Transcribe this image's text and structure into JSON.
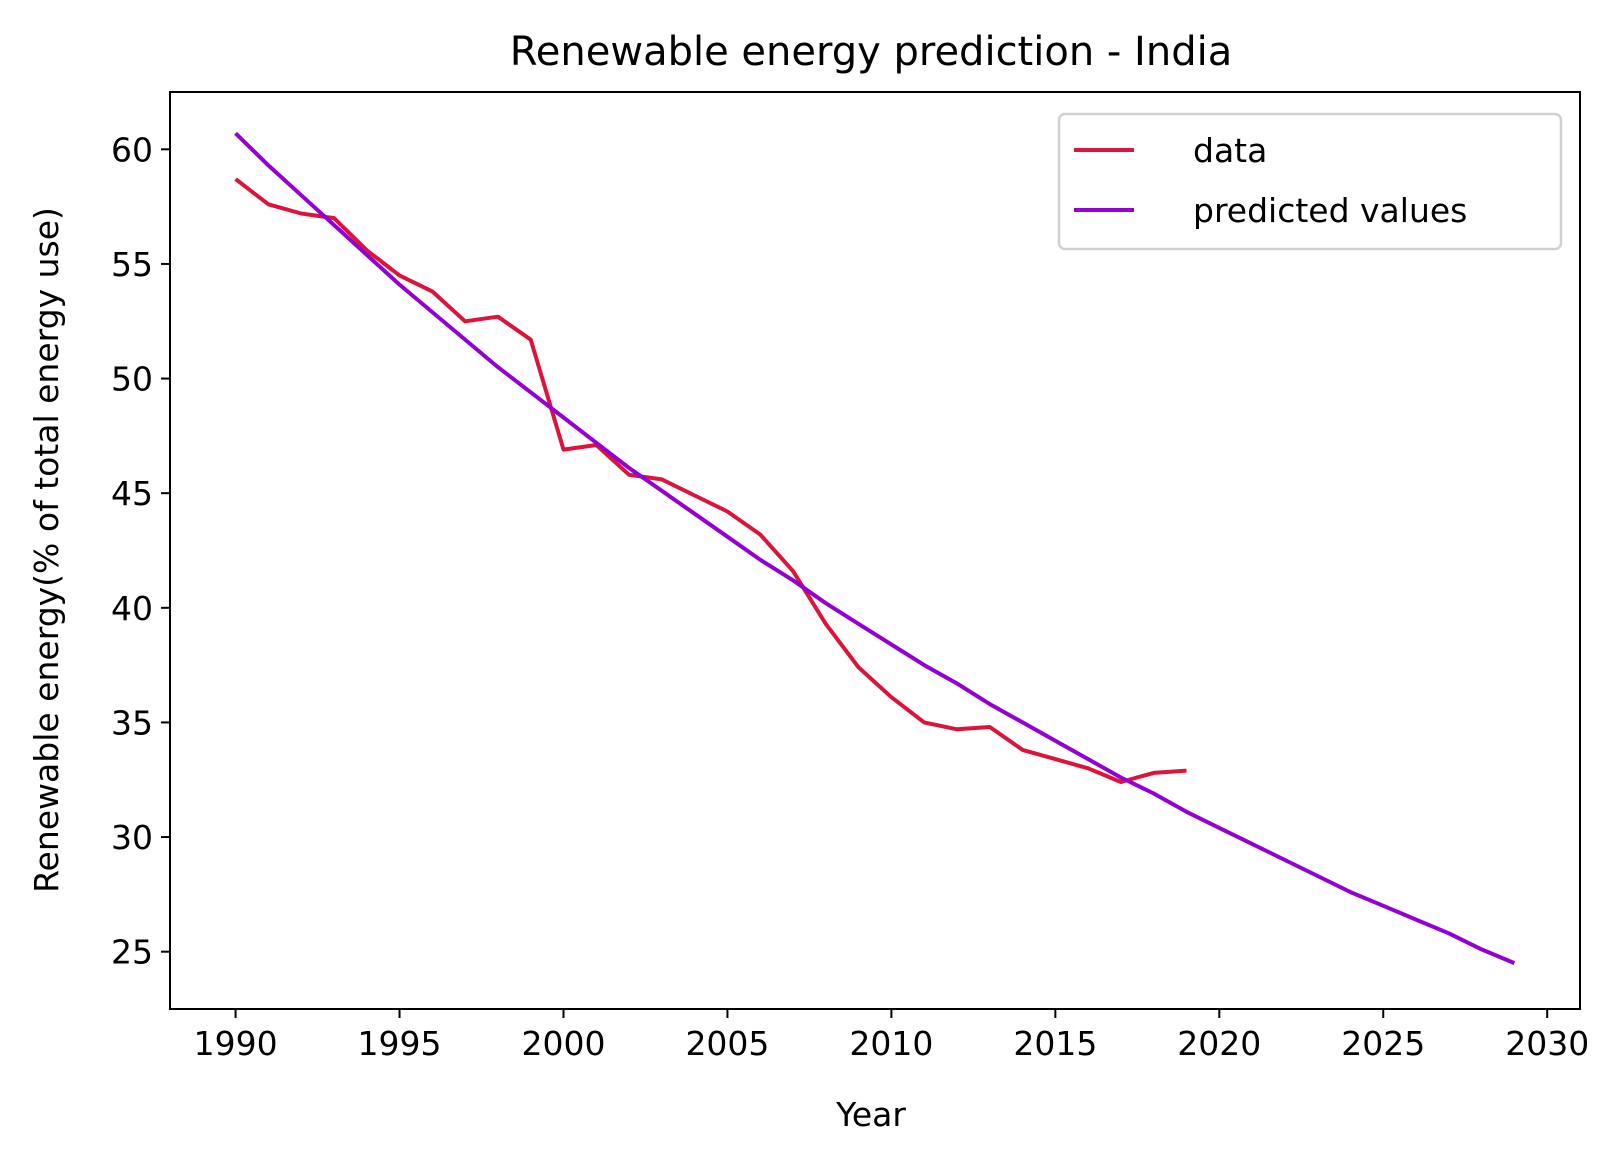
{
  "chart_data": {
    "type": "line",
    "title": "Renewable energy prediction - India",
    "xlabel": "Year",
    "ylabel": "Renewable energy(% of total energy use)",
    "xlim": [
      1988,
      2031
    ],
    "ylim": [
      22.5,
      62.5
    ],
    "xticks": [
      1990,
      1995,
      2000,
      2005,
      2010,
      2015,
      2020,
      2025,
      2030
    ],
    "yticks": [
      25,
      30,
      35,
      40,
      45,
      50,
      55,
      60
    ],
    "grid": false,
    "legend_position": "top-right",
    "series": [
      {
        "name": "data",
        "color": "#dc143c",
        "x": [
          1990,
          1991,
          1992,
          1993,
          1994,
          1995,
          1996,
          1997,
          1998,
          1999,
          2000,
          2001,
          2002,
          2003,
          2004,
          2005,
          2006,
          2007,
          2008,
          2009,
          2010,
          2011,
          2012,
          2013,
          2014,
          2015,
          2016,
          2017,
          2018,
          2019
        ],
        "y": [
          58.7,
          57.6,
          57.2,
          57.0,
          55.6,
          54.5,
          53.8,
          52.5,
          52.7,
          51.7,
          46.9,
          47.1,
          45.8,
          45.6,
          44.9,
          44.2,
          43.2,
          41.6,
          39.3,
          37.4,
          36.1,
          35.0,
          34.7,
          34.8,
          33.8,
          33.4,
          33.0,
          32.4,
          32.8,
          32.9
        ]
      },
      {
        "name": "predicted values",
        "color": "#9400d3",
        "x": [
          1990,
          1991,
          1992,
          1993,
          1994,
          1995,
          1996,
          1997,
          1998,
          1999,
          2000,
          2001,
          2002,
          2003,
          2004,
          2005,
          2006,
          2007,
          2008,
          2009,
          2010,
          2011,
          2012,
          2013,
          2014,
          2015,
          2016,
          2017,
          2018,
          2019,
          2020,
          2021,
          2022,
          2023,
          2024,
          2025,
          2026,
          2027,
          2028,
          2029
        ],
        "y": [
          60.7,
          59.3,
          58.0,
          56.7,
          55.4,
          54.1,
          52.9,
          51.7,
          50.5,
          49.4,
          48.3,
          47.2,
          46.1,
          45.1,
          44.1,
          43.1,
          42.1,
          41.2,
          40.2,
          39.3,
          38.4,
          37.5,
          36.7,
          35.8,
          35.0,
          34.2,
          33.4,
          32.6,
          31.9,
          31.1,
          30.4,
          29.7,
          29.0,
          28.3,
          27.6,
          27.0,
          26.4,
          25.8,
          25.1,
          24.5
        ]
      }
    ]
  }
}
